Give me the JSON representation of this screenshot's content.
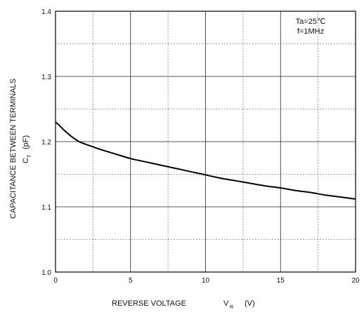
{
  "chart_data": {
    "type": "line",
    "title": "",
    "xlabel": "REVERSE VOLTAGE",
    "xlabel_symbol": "V",
    "xlabel_subscript": "R",
    "xlabel_unit": "(V)",
    "ylabel": "CAPACITANCE BETWEEN TERMINALS",
    "ylabel_symbol": "C",
    "ylabel_subscript": "T",
    "ylabel_unit": "(pF)",
    "xlim": [
      0,
      20
    ],
    "ylim": [
      1.0,
      1.4
    ],
    "x_ticks": [
      0,
      5,
      10,
      15,
      20
    ],
    "y_ticks": [
      1.0,
      1.1,
      1.2,
      1.3,
      1.4
    ],
    "x_tick_labels": [
      "0",
      "5",
      "10",
      "15",
      "20"
    ],
    "y_tick_labels": [
      "1.0",
      "1.1",
      "1.2",
      "1.3",
      "1.4"
    ],
    "x_minor": [
      2.5,
      7.5,
      12.5,
      17.5
    ],
    "y_minor": [
      1.05,
      1.15,
      1.25,
      1.35
    ],
    "grid": true,
    "annotations": [
      "Ta=25℃",
      "f=1MHz"
    ],
    "annotation_position": "top-right",
    "series": [
      {
        "x": [
          0,
          0.25,
          0.5,
          0.75,
          1,
          1.5,
          2,
          2.5,
          3,
          4,
          5,
          6,
          7,
          8,
          9,
          10,
          11,
          12,
          13,
          14,
          15,
          16,
          17,
          18,
          19,
          20
        ],
        "values": [
          1.23,
          1.225,
          1.219,
          1.214,
          1.209,
          1.201,
          1.196,
          1.192,
          1.188,
          1.181,
          1.174,
          1.169,
          1.164,
          1.159,
          1.154,
          1.149,
          1.144,
          1.14,
          1.136,
          1.132,
          1.129,
          1.125,
          1.122,
          1.118,
          1.115,
          1.112
        ]
      }
    ]
  }
}
